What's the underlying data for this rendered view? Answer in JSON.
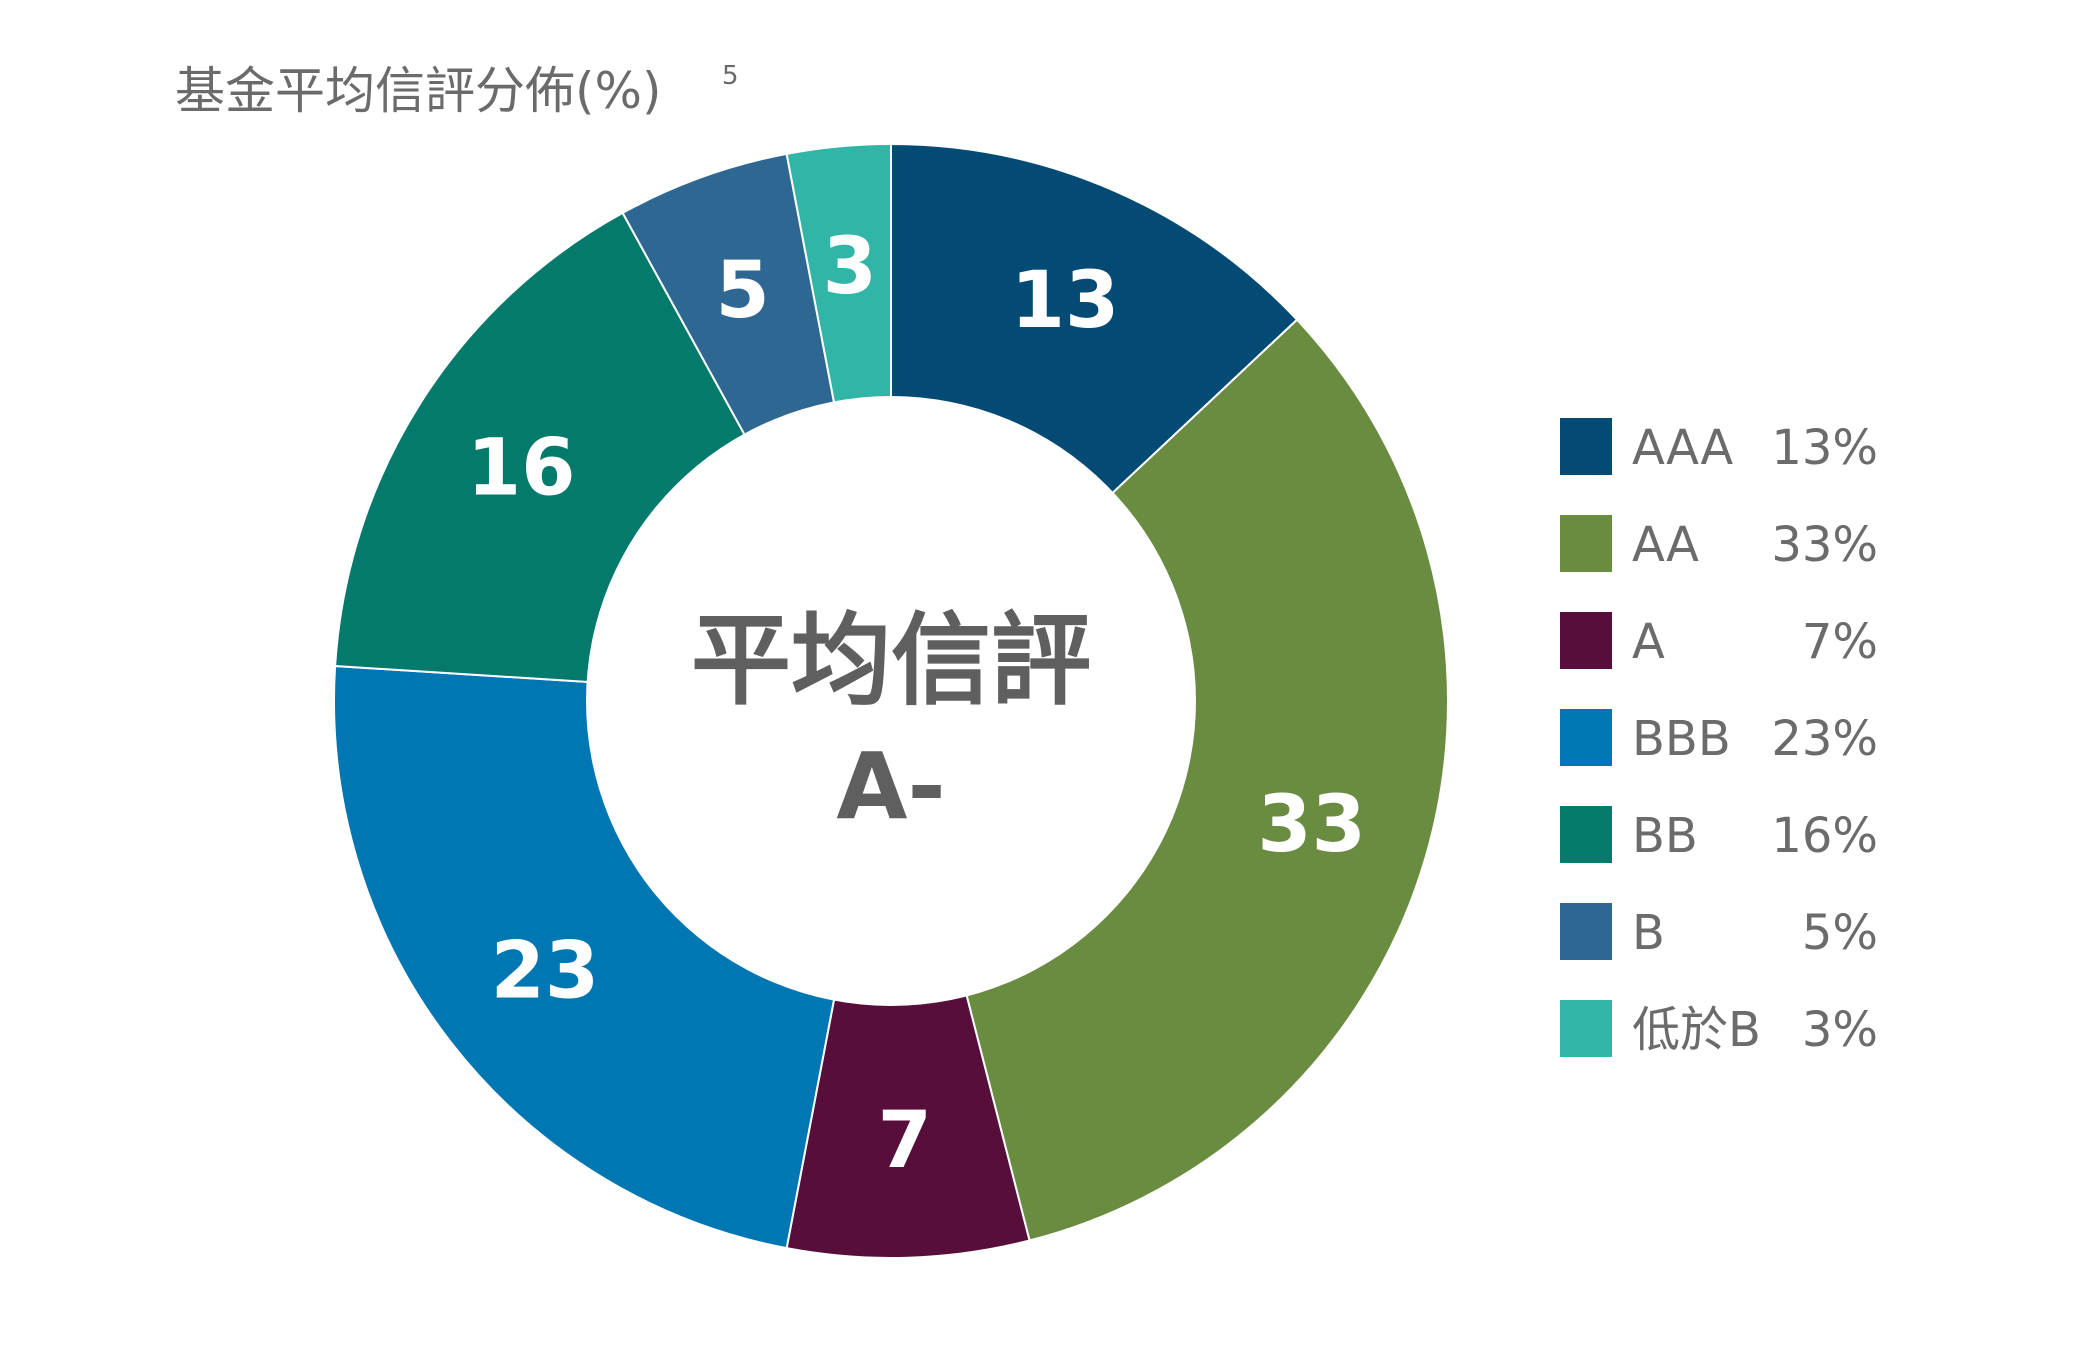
{
  "chart_data": {
    "type": "pie",
    "variant": "donut",
    "title": "基金平均信評分佈(%)",
    "title_footnote": "5",
    "center_title": "平均信評",
    "center_value": "A-",
    "legend_position": "right",
    "slices": [
      {
        "name": "AAA",
        "value": 13,
        "label": "13",
        "legend_value": "13%",
        "color": "#034A74"
      },
      {
        "name": "AA",
        "value": 33,
        "label": "33",
        "legend_value": "33%",
        "color": "#6A8C40"
      },
      {
        "name": "A",
        "value": 7,
        "label": "7",
        "legend_value": "7%",
        "color": "#570E3A"
      },
      {
        "name": "BBB",
        "value": 23,
        "label": "23",
        "legend_value": "23%",
        "color": "#0077B2"
      },
      {
        "name": "BB",
        "value": 16,
        "label": "16",
        "legend_value": "16%",
        "color": "#047A6C"
      },
      {
        "name": "B",
        "value": 5,
        "label": "5",
        "legend_value": "5%",
        "color": "#2E6792"
      },
      {
        "name": "低於B",
        "value": 3,
        "label": "3",
        "legend_value": "3%",
        "color": "#31B5A7"
      }
    ]
  }
}
